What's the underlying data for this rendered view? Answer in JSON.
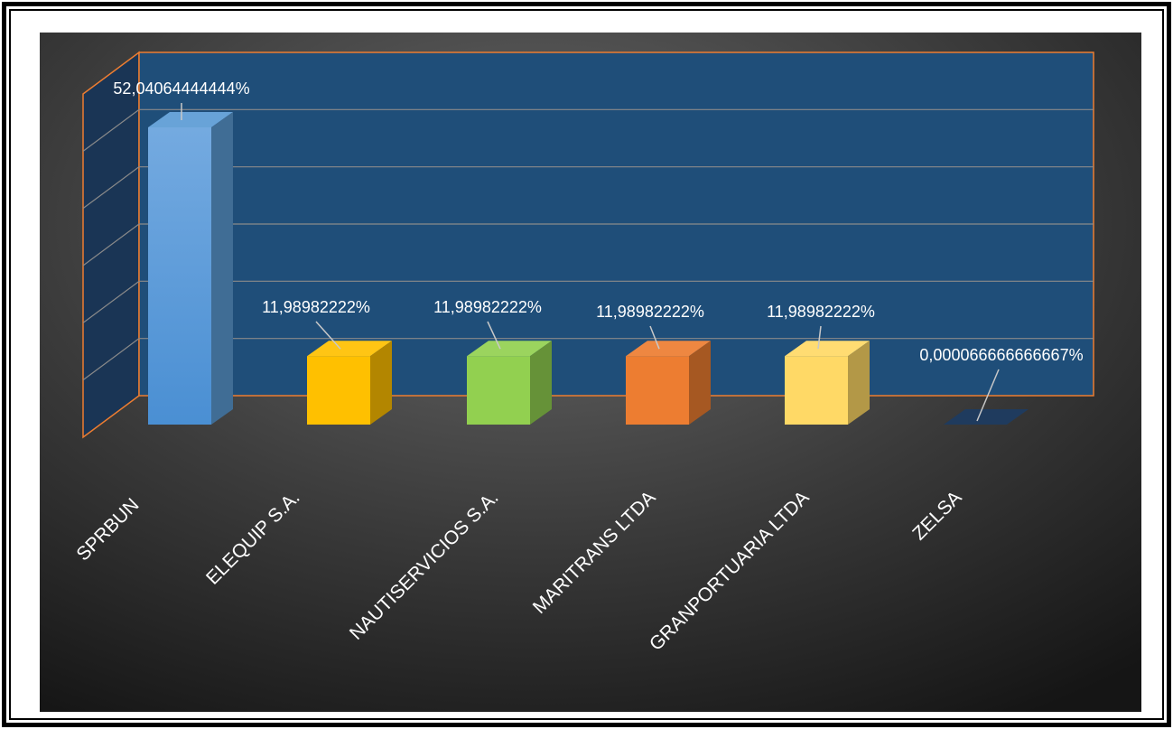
{
  "chart_data": {
    "type": "bar",
    "categories": [
      "SPRBUN",
      "ELEQUIP S.A.",
      "NAUTISERVICIOS S.A.",
      "MARITRANS LTDA",
      "GRANPORTUARIA LTDA",
      "ZELSA"
    ],
    "values": [
      52.04064444444,
      11.98982222,
      11.98982222,
      11.98982222,
      11.98982222,
      6.6666666667e-05
    ],
    "data_labels": [
      "52,04064444444%",
      "11,98982222%",
      "11,98982222%",
      "11,98982222%",
      "11,98982222%",
      "0,000066666666667%"
    ],
    "colors": [
      "#5b9bd5",
      "#ffc000",
      "#92d050",
      "#ed7d31",
      "#ffd966",
      "#1f3b5e"
    ],
    "ylim": [
      0,
      60
    ],
    "grid": true,
    "title": "",
    "xlabel": "",
    "ylabel": ""
  }
}
